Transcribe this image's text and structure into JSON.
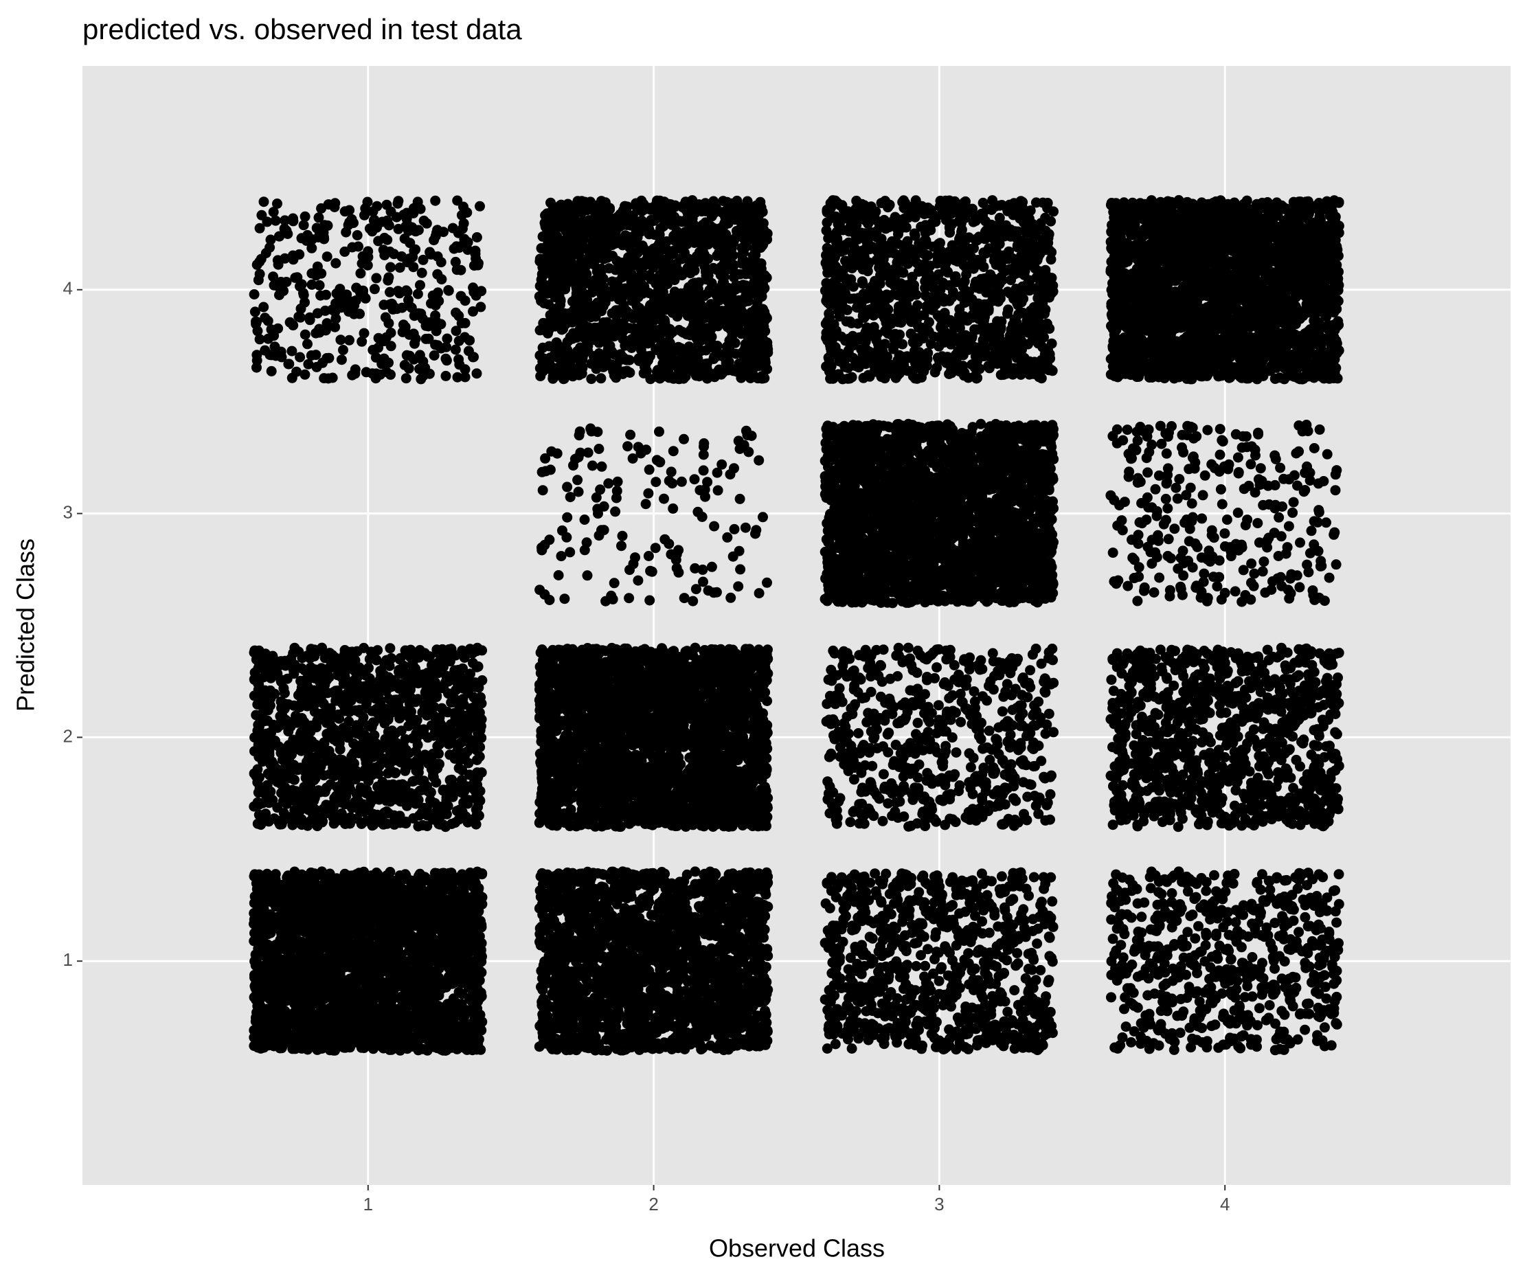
{
  "chart_data": {
    "type": "jitter",
    "title": "predicted vs. observed in test data",
    "x_label": "Observed Class",
    "y_label": "Predicted Class",
    "xlim": [
      0,
      5
    ],
    "ylim": [
      0,
      5
    ],
    "xticks": [
      1,
      2,
      3,
      4
    ],
    "yticks": [
      1,
      2,
      3,
      4
    ],
    "grid": true,
    "color": "#000000",
    "points": [
      {
        "x": 1,
        "y": 4,
        "n": 400
      },
      {
        "x": 2,
        "y": 4,
        "n": 1500
      },
      {
        "x": 3,
        "y": 4,
        "n": 1200
      },
      {
        "x": 4,
        "y": 4,
        "n": 2500
      },
      {
        "x": 2,
        "y": 3,
        "n": 150
      },
      {
        "x": 3,
        "y": 3,
        "n": 2500
      },
      {
        "x": 4,
        "y": 3,
        "n": 300
      },
      {
        "x": 1,
        "y": 2,
        "n": 1200
      },
      {
        "x": 2,
        "y": 2,
        "n": 2500
      },
      {
        "x": 3,
        "y": 2,
        "n": 600
      },
      {
        "x": 4,
        "y": 2,
        "n": 1000
      },
      {
        "x": 1,
        "y": 1,
        "n": 2500
      },
      {
        "x": 2,
        "y": 1,
        "n": 2000
      },
      {
        "x": 3,
        "y": 1,
        "n": 800
      },
      {
        "x": 4,
        "y": 1,
        "n": 600
      }
    ]
  }
}
